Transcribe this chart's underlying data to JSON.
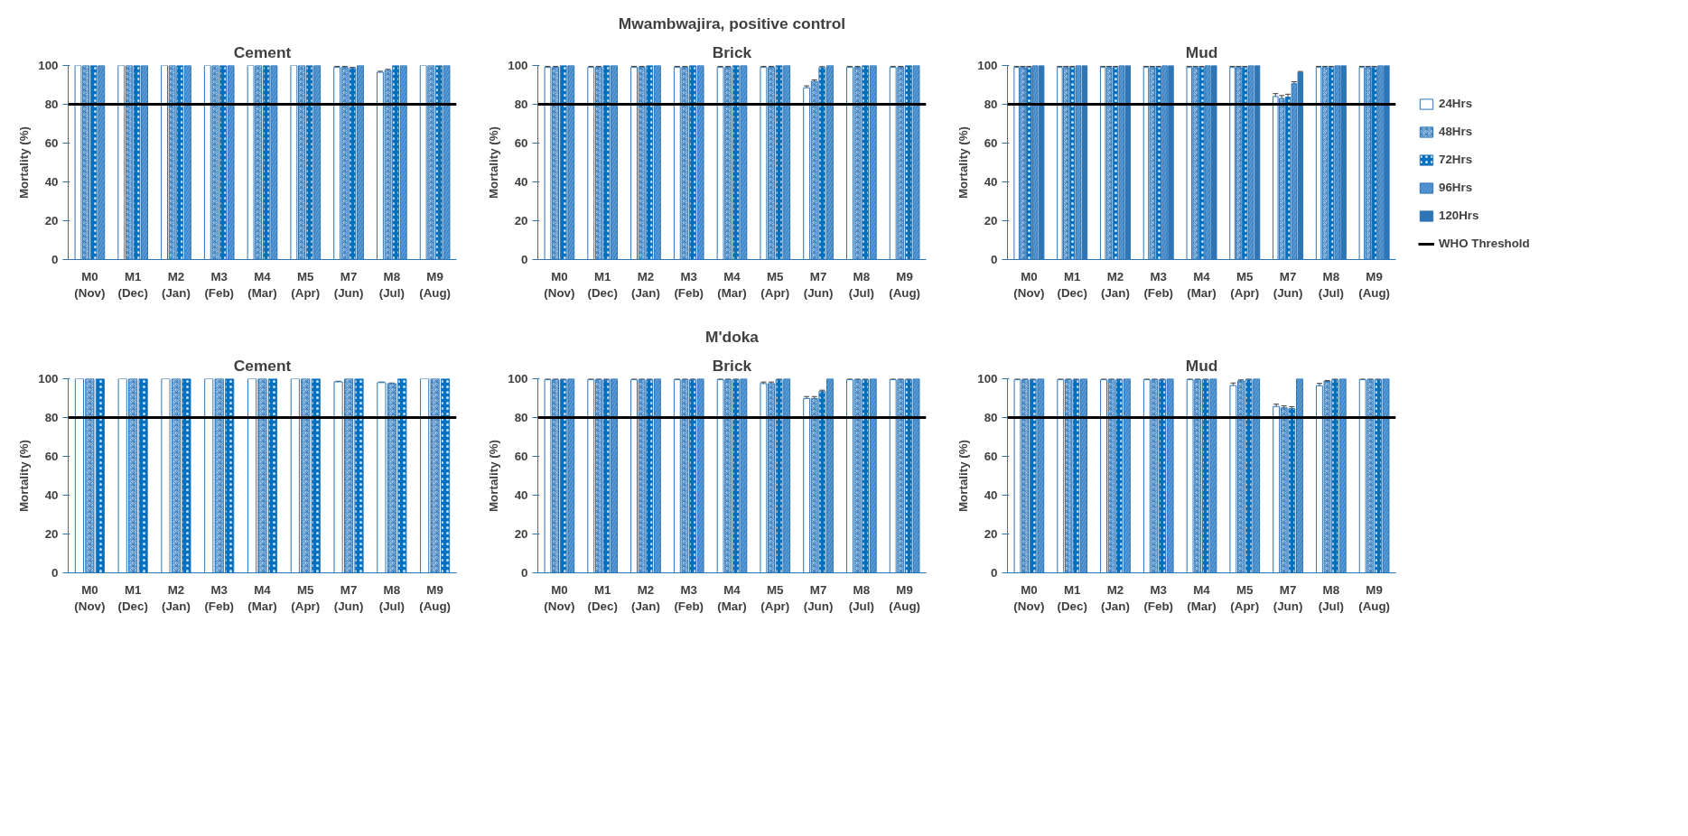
{
  "chart_data": [
    {
      "type": "bar",
      "title": "Cement",
      "ylabel": "Mortality (%)",
      "categories": [
        "M0\n(Nov)",
        "M1\n(Dec)",
        "M2\n(Jan)",
        "M3\n(Feb)",
        "M4\n(Mar)",
        "M5\n(Apr)",
        "M7\n(Jun)",
        "M8\n(Jul)",
        "M9\n(Aug)"
      ],
      "ylim": [
        0,
        100
      ],
      "yticks": [
        0,
        20,
        40,
        60,
        80,
        100
      ],
      "ref_lines": [
        {
          "axis": "y",
          "value": 80,
          "color": "#000000"
        }
      ],
      "series": [
        {
          "color": "#ffffff",
          "values": [
            100,
            100,
            100,
            100,
            100,
            100,
            99,
            96.5,
            100
          ],
          "errors": [
            null,
            null,
            null,
            null,
            null,
            null,
            0.5,
            0.5,
            null
          ]
        },
        {
          "color": "#9dc3e6",
          "values": [
            100,
            100,
            100,
            100,
            100,
            100,
            99,
            97.5,
            100
          ],
          "errors": [
            null,
            null,
            null,
            null,
            null,
            null,
            0.5,
            0.5,
            null
          ]
        },
        {
          "color": "#0070c0",
          "values": [
            100,
            100,
            100,
            100,
            100,
            100,
            98.5,
            100,
            100
          ],
          "errors": [
            null,
            null,
            null,
            null,
            null,
            null,
            0.5,
            null,
            null
          ]
        },
        {
          "color": "#5b9bd5",
          "values": [
            100,
            100,
            100,
            100,
            100,
            100,
            100,
            100,
            100
          ]
        }
      ]
    },
    {
      "type": "bar",
      "subtitle": "Mwambwajira, positive control",
      "title": "Brick",
      "ylabel": "Mortality (%)",
      "categories": [
        "M0\n(Nov)",
        "M1\n(Dec)",
        "M2\n(Jan)",
        "M3\n(Feb)",
        "M4\n(Mar)",
        "M5\n(Apr)",
        "M7\n(Jun)",
        "M8\n(Jul)",
        "M9\n(Aug)"
      ],
      "ylim": [
        0,
        100
      ],
      "yticks": [
        0,
        20,
        40,
        60,
        80,
        100
      ],
      "ref_lines": [
        {
          "axis": "y",
          "value": 80,
          "color": "#000000"
        }
      ],
      "series": [
        {
          "color": "#ffffff",
          "values": [
            99,
            99,
            99,
            99,
            99,
            99,
            88.5,
            99,
            99
          ],
          "errors": [
            0.5,
            0.5,
            0.5,
            0.5,
            0.5,
            0.5,
            1,
            0.5,
            0.5
          ]
        },
        {
          "color": "#9dc3e6",
          "values": [
            99,
            99,
            99,
            99,
            99,
            99,
            91.8,
            99,
            99
          ],
          "errors": [
            0.5,
            0.5,
            0.5,
            0.5,
            0.5,
            0.5,
            0.8,
            0.5,
            0.5
          ]
        },
        {
          "color": "#0070c0",
          "values": [
            100,
            100,
            100,
            100,
            100,
            100,
            98.9,
            100,
            100
          ],
          "errors": [
            null,
            null,
            null,
            null,
            null,
            null,
            0.5,
            null,
            null
          ]
        },
        {
          "color": "#5b9bd5",
          "values": [
            100,
            100,
            100,
            100,
            100,
            100,
            100,
            100,
            100
          ]
        }
      ]
    },
    {
      "type": "bar",
      "title": "Mud",
      "ylabel": "Mortality (%)",
      "categories": [
        "M0\n(Nov)",
        "M1\n(Dec)",
        "M2\n(Jan)",
        "M3\n(Feb)",
        "M4\n(Mar)",
        "M5\n(Apr)",
        "M7\n(Jun)",
        "M8\n(Jul)",
        "M9\n(Aug)"
      ],
      "ylim": [
        0,
        100
      ],
      "yticks": [
        0,
        20,
        40,
        60,
        80,
        100
      ],
      "legend": "right",
      "ref_lines": [
        {
          "axis": "y",
          "value": 80,
          "label": "WHO Threshold",
          "color": "#000000"
        }
      ],
      "series": [
        {
          "name": "24Hrs",
          "color": "#ffffff",
          "values": [
            99,
            99,
            99,
            99,
            99,
            99,
            84,
            99,
            99
          ],
          "errors": [
            0.5,
            0.5,
            0.5,
            0.5,
            0.5,
            0.5,
            1.5,
            0.5,
            0.5
          ]
        },
        {
          "name": "48Hrs",
          "color": "#9dc3e6",
          "values": [
            99,
            99,
            99,
            99,
            99,
            99,
            83,
            99,
            99
          ],
          "errors": [
            0.5,
            0.5,
            0.5,
            0.5,
            0.5,
            0.5,
            1.5,
            0.5,
            0.5
          ]
        },
        {
          "name": "72Hrs",
          "color": "#0070c0",
          "values": [
            99,
            99,
            99,
            99,
            99,
            99,
            83.7,
            99,
            99
          ],
          "errors": [
            0.5,
            0.5,
            0.5,
            0.5,
            0.5,
            0.5,
            1.5,
            0.5,
            0.5
          ]
        },
        {
          "name": "96Hrs",
          "color": "#5b9bd5",
          "values": [
            100,
            100,
            100,
            100,
            100,
            100,
            90.6,
            100,
            100
          ],
          "errors": [
            null,
            null,
            null,
            null,
            null,
            null,
            1,
            null,
            null
          ]
        },
        {
          "name": "120Hrs",
          "color": "#2e75b6",
          "values": [
            100,
            100,
            100,
            100,
            100,
            100,
            96.4,
            100,
            100
          ],
          "errors": [
            null,
            null,
            null,
            null,
            null,
            null,
            0.5,
            null,
            null
          ]
        }
      ]
    },
    {
      "type": "bar",
      "title": "Cement",
      "ylabel": "Mortality (%)",
      "categories": [
        "M0\n(Nov)",
        "M1\n(Dec)",
        "M2\n(Jan)",
        "M3\n(Feb)",
        "M4\n(Mar)",
        "M5\n(Apr)",
        "M7\n(Jun)",
        "M8\n(Jul)",
        "M9\n(Aug)"
      ],
      "ylim": [
        0,
        100
      ],
      "yticks": [
        0,
        20,
        40,
        60,
        80,
        100
      ],
      "ref_lines": [
        {
          "axis": "y",
          "value": 80,
          "color": "#000000"
        }
      ],
      "series": [
        {
          "color": "#ffffff",
          "values": [
            100,
            100,
            100,
            100,
            100,
            100,
            98.4,
            98,
            100
          ],
          "errors": [
            null,
            null,
            null,
            null,
            null,
            null,
            0.3,
            0.3,
            null
          ]
        },
        {
          "color": "#9dc3e6",
          "values": [
            100,
            100,
            100,
            100,
            100,
            100,
            100,
            97.5,
            100
          ],
          "errors": [
            null,
            null,
            null,
            null,
            null,
            null,
            null,
            0.3,
            null
          ]
        },
        {
          "color": "#0070c0",
          "values": [
            100,
            100,
            100,
            100,
            100,
            100,
            100,
            100,
            100
          ]
        }
      ]
    },
    {
      "type": "bar",
      "subtitle": "M'doka",
      "title": "Brick",
      "ylabel": "Mortality (%)",
      "categories": [
        "M0\n(Nov)",
        "M1\n(Dec)",
        "M2\n(Jan)",
        "M3\n(Feb)",
        "M4\n(Mar)",
        "M5\n(Apr)",
        "M7\n(Jun)",
        "M8\n(Jul)",
        "M9\n(Aug)"
      ],
      "ylim": [
        0,
        100
      ],
      "yticks": [
        0,
        20,
        40,
        60,
        80,
        100
      ],
      "ref_lines": [
        {
          "axis": "y",
          "value": 80,
          "color": "#000000"
        }
      ],
      "series": [
        {
          "color": "#ffffff",
          "values": [
            99.5,
            99.5,
            99.5,
            99.5,
            99.5,
            97.5,
            89.8,
            99.5,
            99.5
          ],
          "errors": [
            0.5,
            0.5,
            0.5,
            0.5,
            0.5,
            0.8,
            1,
            0.5,
            0.5
          ]
        },
        {
          "color": "#9dc3e6",
          "values": [
            99.5,
            99.5,
            99.5,
            99.5,
            99.5,
            97.5,
            89.8,
            99.5,
            99.5
          ],
          "errors": [
            0.5,
            0.5,
            0.5,
            0.5,
            0.5,
            0.8,
            1,
            0.5,
            0.5
          ]
        },
        {
          "color": "#0070c0",
          "values": [
            99.5,
            99.5,
            99.5,
            99.5,
            99.5,
            99.5,
            93.4,
            99.5,
            99.5
          ],
          "errors": [
            0.5,
            0.5,
            0.5,
            0.5,
            0.5,
            0.5,
            0.7,
            0.5,
            0.5
          ]
        },
        {
          "color": "#5b9bd5",
          "values": [
            100,
            100,
            100,
            100,
            100,
            100,
            100,
            100,
            100
          ]
        }
      ]
    },
    {
      "type": "bar",
      "title": "Mud",
      "ylabel": "Mortality (%)",
      "categories": [
        "M0\n(Nov)",
        "M1\n(Dec)",
        "M2\n(Jan)",
        "M3\n(Feb)",
        "M4\n(Mar)",
        "M5\n(Apr)",
        "M7\n(Jun)",
        "M8\n(Jul)",
        "M9\n(Aug)"
      ],
      "ylim": [
        0,
        100
      ],
      "yticks": [
        0,
        20,
        40,
        60,
        80,
        100
      ],
      "ref_lines": [
        {
          "axis": "y",
          "value": 80,
          "color": "#000000"
        }
      ],
      "series": [
        {
          "color": "#ffffff",
          "values": [
            99.5,
            99.5,
            99.5,
            99.5,
            99.5,
            96.5,
            85.7,
            96.4,
            99.5
          ],
          "errors": [
            0.5,
            0.5,
            0.5,
            0.5,
            0.5,
            1.3,
            1.2,
            1.2,
            0.5
          ]
        },
        {
          "color": "#9dc3e6",
          "values": [
            99.5,
            99.5,
            99.5,
            99.5,
            99.5,
            98.9,
            85,
            98.6,
            99.5
          ],
          "errors": [
            0.5,
            0.5,
            0.5,
            0.5,
            0.5,
            0.5,
            1,
            0.5,
            0.5
          ]
        },
        {
          "color": "#0070c0",
          "values": [
            99.5,
            99.5,
            99.5,
            99.5,
            99.5,
            99.5,
            84.6,
            99.5,
            99.5
          ],
          "errors": [
            0.5,
            0.5,
            0.5,
            0.5,
            0.5,
            0.5,
            1,
            0.5,
            0.5
          ]
        },
        {
          "color": "#5b9bd5",
          "values": [
            100,
            100,
            100,
            100,
            100,
            100,
            100,
            100,
            100
          ]
        }
      ]
    }
  ]
}
